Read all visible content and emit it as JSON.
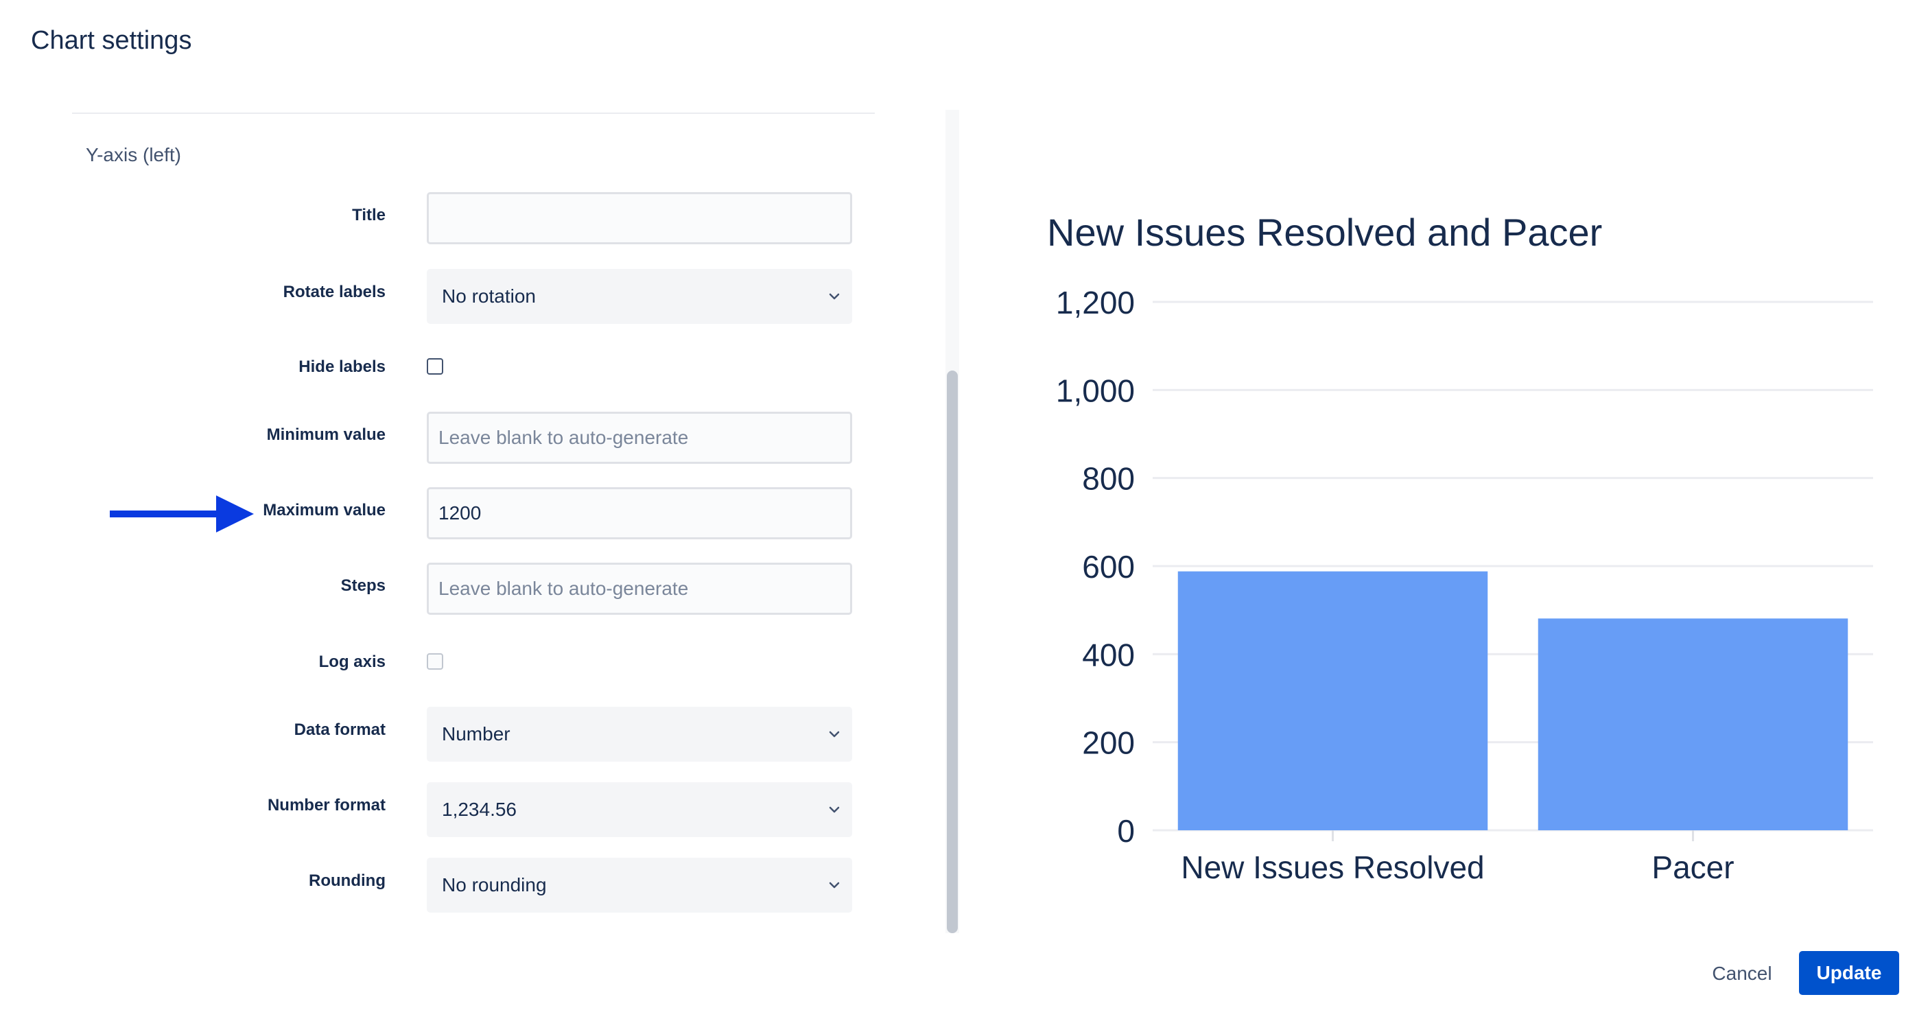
{
  "dialog": {
    "title": "Chart settings"
  },
  "section": {
    "heading": "Y-axis (left)"
  },
  "form": {
    "title": {
      "label": "Title",
      "value": ""
    },
    "rotate_labels": {
      "label": "Rotate labels",
      "value": "No rotation"
    },
    "hide_labels": {
      "label": "Hide labels",
      "checked": false
    },
    "minimum_value": {
      "label": "Minimum value",
      "value": "",
      "placeholder": "Leave blank to auto-generate"
    },
    "maximum_value": {
      "label": "Maximum value",
      "value": "1200"
    },
    "steps": {
      "label": "Steps",
      "value": "",
      "placeholder": "Leave blank to auto-generate"
    },
    "log_axis": {
      "label": "Log axis",
      "checked": false,
      "disabled": true
    },
    "data_format": {
      "label": "Data format",
      "value": "Number"
    },
    "number_format": {
      "label": "Number format",
      "value": "1,234.56"
    },
    "rounding": {
      "label": "Rounding",
      "value": "No rounding"
    }
  },
  "icons": {
    "select": "chevron-down-icon",
    "annotation": "arrow-right-icon"
  },
  "colors": {
    "accent": "#0052cc",
    "arrow": "#0a3ae0",
    "bar": "#679df6",
    "grid": "#ebecf0",
    "text": "#172b4d"
  },
  "chart_data": {
    "type": "bar",
    "title": "New Issues Resolved and Pacer",
    "categories": [
      "New Issues Resolved",
      "Pacer"
    ],
    "values": [
      588,
      481
    ],
    "ylim": [
      0,
      1200
    ],
    "yticks": [
      0,
      200,
      400,
      600,
      800,
      1000,
      1200
    ],
    "ytick_labels": [
      "0",
      "200",
      "400",
      "600",
      "800",
      "1,000",
      "1,200"
    ],
    "grid": true,
    "legend": "none"
  },
  "footer": {
    "cancel_label": "Cancel",
    "update_label": "Update"
  }
}
